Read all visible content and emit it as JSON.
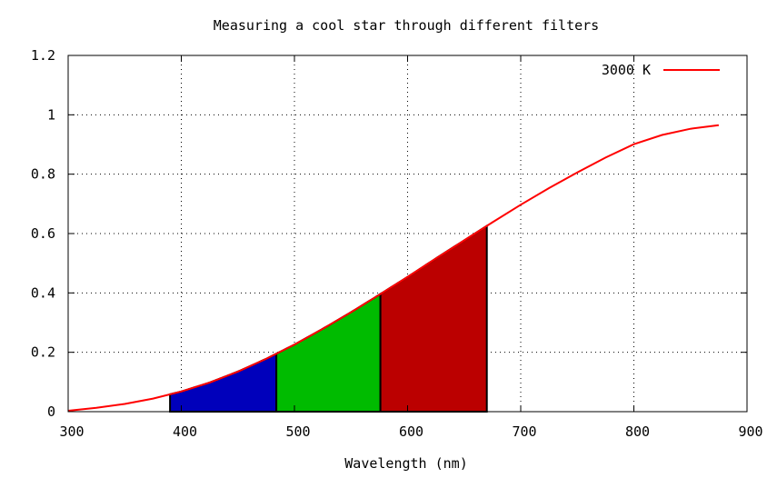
{
  "chart_data": {
    "type": "area",
    "title": "Measuring a cool star through different filters",
    "xlabel": "Wavelength (nm)",
    "ylabel": "",
    "xlim": [
      300,
      900
    ],
    "ylim": [
      0,
      1.2
    ],
    "x_ticks": [
      300,
      400,
      500,
      600,
      700,
      800,
      900
    ],
    "x_tick_labels": [
      "300",
      "400",
      "500",
      "600",
      "700",
      "800",
      "900"
    ],
    "y_ticks": [
      0,
      0.2,
      0.4,
      0.6,
      0.8,
      1.0,
      1.2
    ],
    "y_tick_labels": [
      "0",
      "0.2",
      "0.4",
      "0.6",
      "0.8",
      "1",
      "1.2"
    ],
    "grid": true,
    "legend_position": "top-right",
    "series": [
      {
        "name": "3000 K",
        "color": "#ff0000",
        "x": [
          300,
          325,
          350,
          375,
          400,
          425,
          450,
          475,
          500,
          525,
          550,
          575,
          600,
          625,
          650,
          675,
          700,
          725,
          750,
          775,
          800,
          825,
          850,
          875
        ],
        "y": [
          0.003,
          0.013,
          0.026,
          0.044,
          0.068,
          0.098,
          0.135,
          0.178,
          0.226,
          0.279,
          0.335,
          0.394,
          0.454,
          0.516,
          0.577,
          0.638,
          0.697,
          0.753,
          0.806,
          0.856,
          0.901,
          0.932,
          0.953,
          0.965
        ]
      }
    ],
    "filters": [
      {
        "name": "blue",
        "color": "#0000bb",
        "x_start": 390,
        "x_end": 484
      },
      {
        "name": "green",
        "color": "#00bb00",
        "x_start": 484,
        "x_end": 576
      },
      {
        "name": "red",
        "color": "#bb0000",
        "x_start": 576,
        "x_end": 670
      }
    ]
  }
}
